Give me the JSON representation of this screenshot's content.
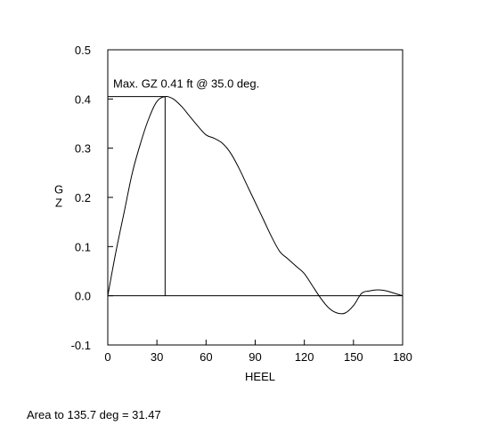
{
  "chart_data": {
    "type": "line",
    "title": "",
    "xlabel": "HEEL",
    "ylabel": "GZ",
    "xlim": [
      0,
      180
    ],
    "ylim": [
      -0.1,
      0.5
    ],
    "xticks": [
      0,
      30,
      60,
      90,
      120,
      150,
      180
    ],
    "xtick_labels": [
      "0",
      "30",
      "60",
      "90",
      "120",
      "150",
      "180"
    ],
    "yticks": [
      -0.1,
      0.0,
      0.1,
      0.2,
      0.3,
      0.4,
      0.5
    ],
    "ytick_labels": [
      "-0.1",
      "0.0",
      "0.1",
      "0.2",
      "0.3",
      "0.4",
      "0.5"
    ],
    "grid": false,
    "series": [
      {
        "x": [
          0,
          5,
          10,
          15,
          20,
          25,
          30,
          35,
          40,
          45,
          50,
          55,
          60,
          65,
          70,
          75,
          80,
          85,
          90,
          95,
          100,
          105,
          110,
          115,
          120,
          125,
          130,
          135,
          140,
          145,
          150,
          155,
          160,
          165,
          170,
          175,
          180
        ],
        "values": [
          0.0,
          0.09,
          0.17,
          0.25,
          0.31,
          0.36,
          0.395,
          0.405,
          0.4,
          0.385,
          0.365,
          0.345,
          0.327,
          0.32,
          0.31,
          0.29,
          0.26,
          0.225,
          0.19,
          0.155,
          0.12,
          0.09,
          0.075,
          0.06,
          0.045,
          0.02,
          -0.005,
          -0.025,
          -0.035,
          -0.035,
          -0.02,
          0.005,
          0.01,
          0.012,
          0.01,
          0.005,
          0.0
        ],
        "color": "#000000"
      }
    ],
    "annotation": {
      "text": "Max. GZ 0.41 ft @ 35.0 deg.",
      "x": 35.0,
      "y": 0.405
    }
  },
  "footer": {
    "area_text": "Area to 135.7 deg = 31.47"
  }
}
